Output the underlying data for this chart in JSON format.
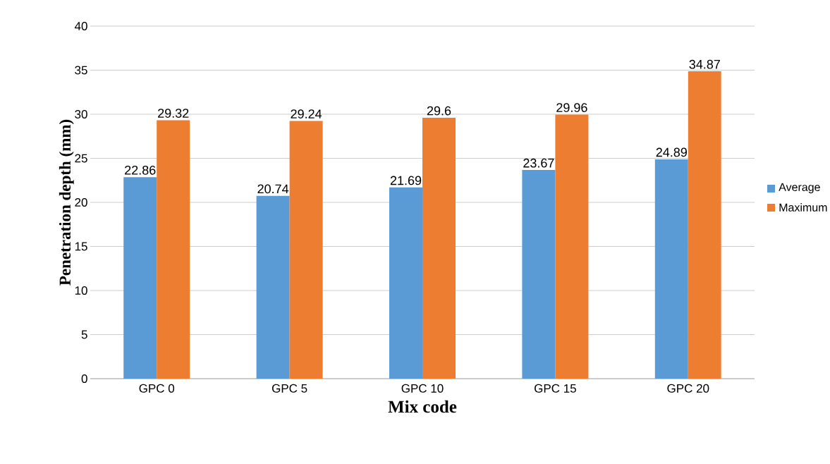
{
  "chart_data": {
    "type": "bar",
    "xlabel": "Mix code",
    "ylabel": "Penetration depth (mm)",
    "categories": [
      "GPC 0",
      "GPC 5",
      "GPC 10",
      "GPC 15",
      "GPC 20"
    ],
    "series": [
      {
        "name": "Average",
        "color": "#5b9bd5",
        "values": [
          22.86,
          20.74,
          21.69,
          23.67,
          24.89
        ]
      },
      {
        "name": "Maximum",
        "color": "#ed7d31",
        "values": [
          29.32,
          29.24,
          29.6,
          29.96,
          34.87
        ]
      }
    ],
    "ylim": [
      0,
      40
    ],
    "yticks": [
      0,
      5,
      10,
      15,
      20,
      25,
      30,
      35,
      40
    ],
    "grid": "y",
    "legend": "right",
    "data_labels": true
  }
}
